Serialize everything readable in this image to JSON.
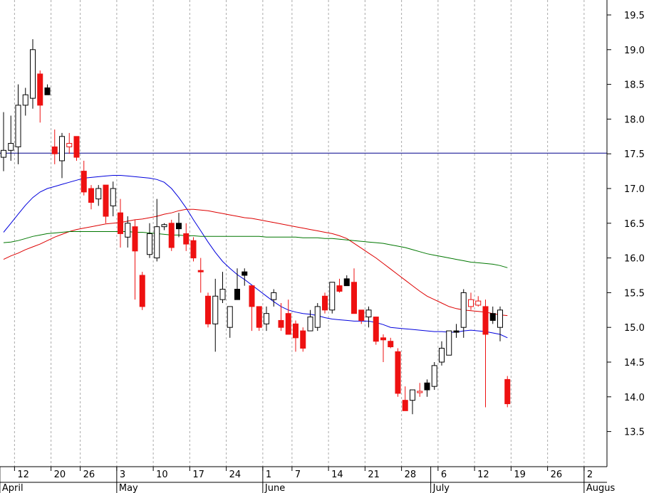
{
  "chart_data": {
    "type": "candlestick",
    "title": "",
    "ylim": [
      13.15,
      19.75
    ],
    "grid": true,
    "y_ticks": [
      "19.5",
      "19.0",
      "18.5",
      "18.0",
      "17.5",
      "17.0",
      "16.5",
      "16.0",
      "15.5",
      "15.0",
      "14.5",
      "14.0",
      "13.5"
    ],
    "x_ticks": [
      {
        "label": "12",
        "bar": 1.5
      },
      {
        "label": "20",
        "bar": 6.5
      },
      {
        "label": "26",
        "bar": 10.5
      },
      {
        "label": "3",
        "bar": 15.5
      },
      {
        "label": "10",
        "bar": 20.5
      },
      {
        "label": "17",
        "bar": 25.5
      },
      {
        "label": "24",
        "bar": 30.5
      },
      {
        "label": "1",
        "bar": 35.5
      },
      {
        "label": "7",
        "bar": 39.5
      },
      {
        "label": "14",
        "bar": 44.5
      },
      {
        "label": "21",
        "bar": 49.5
      },
      {
        "label": "28",
        "bar": 54.5
      },
      {
        "label": "6",
        "bar": 59.5
      },
      {
        "label": "12",
        "bar": 64.5
      },
      {
        "label": "19",
        "bar": 69.5
      },
      {
        "label": "26",
        "bar": 74.5
      },
      {
        "label": "2",
        "bar": 79.5
      }
    ],
    "months": [
      {
        "label": "April",
        "bar": -0.5
      },
      {
        "label": "May",
        "bar": 15.5
      },
      {
        "label": "June",
        "bar": 35.5
      },
      {
        "label": "July",
        "bar": 58.5
      },
      {
        "label": "Augus",
        "bar": 79.5
      }
    ],
    "reference_line": {
      "value": 17.51,
      "color": "#00008b"
    },
    "colors": {
      "up": "#ffffff",
      "down_filled": "#ee1111",
      "black": "#000000",
      "ma_blue": "#0000dd",
      "ma_red": "#dd0000",
      "ma_green": "#007700",
      "grid": "#aaaaaa",
      "axis": "#000000"
    },
    "candles": [
      {
        "o": 17.45,
        "h": 18.1,
        "l": 17.25,
        "c": 17.55,
        "s": "up"
      },
      {
        "o": 17.55,
        "h": 18.05,
        "l": 17.4,
        "c": 17.65,
        "s": "up"
      },
      {
        "o": 17.6,
        "h": 18.5,
        "l": 17.35,
        "c": 18.2,
        "s": "up"
      },
      {
        "o": 18.2,
        "h": 18.45,
        "l": 18.05,
        "c": 18.35,
        "s": "up"
      },
      {
        "o": 18.3,
        "h": 19.15,
        "l": 18.15,
        "c": 19.0,
        "s": "up"
      },
      {
        "o": 18.65,
        "h": 18.7,
        "l": 17.95,
        "c": 18.2,
        "s": "down"
      },
      {
        "o": 18.45,
        "h": 18.5,
        "l": 18.35,
        "c": 18.35,
        "s": "black"
      },
      {
        "o": 17.6,
        "h": 17.85,
        "l": 17.35,
        "c": 17.5,
        "s": "down"
      },
      {
        "o": 17.4,
        "h": 17.8,
        "l": 17.15,
        "c": 17.75,
        "s": "up"
      },
      {
        "o": 17.65,
        "h": 17.8,
        "l": 17.5,
        "c": 17.6,
        "s": "hollowred"
      },
      {
        "o": 17.75,
        "h": 17.75,
        "l": 17.4,
        "c": 17.45,
        "s": "down"
      },
      {
        "o": 17.25,
        "h": 17.4,
        "l": 16.9,
        "c": 16.95,
        "s": "down"
      },
      {
        "o": 17.0,
        "h": 17.05,
        "l": 16.7,
        "c": 16.8,
        "s": "down"
      },
      {
        "o": 16.85,
        "h": 17.05,
        "l": 16.75,
        "c": 17.0,
        "s": "up"
      },
      {
        "o": 17.05,
        "h": 17.05,
        "l": 16.5,
        "c": 16.6,
        "s": "down"
      },
      {
        "o": 16.75,
        "h": 17.1,
        "l": 16.6,
        "c": 17.0,
        "s": "up"
      },
      {
        "o": 16.65,
        "h": 16.85,
        "l": 16.15,
        "c": 16.35,
        "s": "down"
      },
      {
        "o": 16.3,
        "h": 16.6,
        "l": 16.15,
        "c": 16.5,
        "s": "up"
      },
      {
        "o": 16.45,
        "h": 16.55,
        "l": 15.4,
        "c": 16.1,
        "s": "down"
      },
      {
        "o": 15.75,
        "h": 15.8,
        "l": 15.25,
        "c": 15.3,
        "s": "down"
      },
      {
        "o": 16.05,
        "h": 16.5,
        "l": 16.0,
        "c": 16.35,
        "s": "up"
      },
      {
        "o": 16.0,
        "h": 16.85,
        "l": 15.95,
        "c": 16.45,
        "s": "up"
      },
      {
        "o": 16.45,
        "h": 16.5,
        "l": 16.4,
        "c": 16.48,
        "s": "up"
      },
      {
        "o": 16.5,
        "h": 16.55,
        "l": 16.1,
        "c": 16.15,
        "s": "down"
      },
      {
        "o": 16.5,
        "h": 16.65,
        "l": 16.3,
        "c": 16.42,
        "s": "black"
      },
      {
        "o": 16.35,
        "h": 16.5,
        "l": 16.1,
        "c": 16.2,
        "s": "down"
      },
      {
        "o": 16.25,
        "h": 16.3,
        "l": 15.95,
        "c": 16.0,
        "s": "down"
      },
      {
        "o": 15.82,
        "h": 16.0,
        "l": 15.5,
        "c": 15.8,
        "s": "down"
      },
      {
        "o": 15.45,
        "h": 15.5,
        "l": 15.0,
        "c": 15.05,
        "s": "down"
      },
      {
        "o": 15.05,
        "h": 15.7,
        "l": 14.65,
        "c": 15.45,
        "s": "up"
      },
      {
        "o": 15.4,
        "h": 15.8,
        "l": 15.35,
        "c": 15.55,
        "s": "up"
      },
      {
        "o": 15.3,
        "h": 15.3,
        "l": 14.85,
        "c": 15.0,
        "s": "up"
      },
      {
        "o": 15.4,
        "h": 15.85,
        "l": 15.4,
        "c": 15.55,
        "s": "black"
      },
      {
        "o": 15.75,
        "h": 15.85,
        "l": 15.6,
        "c": 15.8,
        "s": "black"
      },
      {
        "o": 15.6,
        "h": 15.6,
        "l": 14.95,
        "c": 15.3,
        "s": "down"
      },
      {
        "o": 15.3,
        "h": 15.3,
        "l": 14.95,
        "c": 15.0,
        "s": "down"
      },
      {
        "o": 15.05,
        "h": 15.3,
        "l": 14.95,
        "c": 15.2,
        "s": "up"
      },
      {
        "o": 15.4,
        "h": 15.55,
        "l": 15.3,
        "c": 15.5,
        "s": "up"
      },
      {
        "o": 15.1,
        "h": 15.35,
        "l": 14.95,
        "c": 15.0,
        "s": "down"
      },
      {
        "o": 15.2,
        "h": 15.4,
        "l": 14.9,
        "c": 14.9,
        "s": "down"
      },
      {
        "o": 15.05,
        "h": 15.1,
        "l": 14.65,
        "c": 14.85,
        "s": "down"
      },
      {
        "o": 14.95,
        "h": 15.0,
        "l": 14.65,
        "c": 14.7,
        "s": "down"
      },
      {
        "o": 14.95,
        "h": 15.25,
        "l": 14.95,
        "c": 15.15,
        "s": "up"
      },
      {
        "o": 15.0,
        "h": 15.35,
        "l": 14.95,
        "c": 15.3,
        "s": "up"
      },
      {
        "o": 15.45,
        "h": 15.5,
        "l": 15.2,
        "c": 15.25,
        "s": "down"
      },
      {
        "o": 15.25,
        "h": 15.65,
        "l": 15.2,
        "c": 15.65,
        "s": "up"
      },
      {
        "o": 15.6,
        "h": 15.7,
        "l": 15.5,
        "c": 15.52,
        "s": "down"
      },
      {
        "o": 15.7,
        "h": 15.75,
        "l": 15.6,
        "c": 15.6,
        "s": "black"
      },
      {
        "o": 15.65,
        "h": 15.85,
        "l": 15.2,
        "c": 15.2,
        "s": "down"
      },
      {
        "o": 15.25,
        "h": 15.25,
        "l": 15.05,
        "c": 15.1,
        "s": "down"
      },
      {
        "o": 15.15,
        "h": 15.3,
        "l": 15.0,
        "c": 15.25,
        "s": "up"
      },
      {
        "o": 15.15,
        "h": 15.15,
        "l": 14.75,
        "c": 14.8,
        "s": "down"
      },
      {
        "o": 14.85,
        "h": 14.9,
        "l": 14.5,
        "c": 14.82,
        "s": "down"
      },
      {
        "o": 14.8,
        "h": 14.85,
        "l": 14.7,
        "c": 14.72,
        "s": "down"
      },
      {
        "o": 14.65,
        "h": 14.7,
        "l": 14.0,
        "c": 14.05,
        "s": "down"
      },
      {
        "o": 13.95,
        "h": 14.15,
        "l": 13.8,
        "c": 13.8,
        "s": "down"
      },
      {
        "o": 13.95,
        "h": 14.1,
        "l": 13.75,
        "c": 14.1,
        "s": "up"
      },
      {
        "o": 14.08,
        "h": 14.2,
        "l": 14.0,
        "c": 14.06,
        "s": "hollowred"
      },
      {
        "o": 14.2,
        "h": 14.25,
        "l": 14.0,
        "c": 14.1,
        "s": "black"
      },
      {
        "o": 14.15,
        "h": 14.5,
        "l": 14.1,
        "c": 14.45,
        "s": "up"
      },
      {
        "o": 14.5,
        "h": 14.8,
        "l": 14.45,
        "c": 14.7,
        "s": "up"
      },
      {
        "o": 14.6,
        "h": 14.95,
        "l": 14.6,
        "c": 14.95,
        "s": "up"
      },
      {
        "o": 14.95,
        "h": 15.05,
        "l": 14.85,
        "c": 14.95,
        "s": "black"
      },
      {
        "o": 15.0,
        "h": 15.55,
        "l": 14.85,
        "c": 15.5,
        "s": "up"
      },
      {
        "o": 15.4,
        "h": 15.5,
        "l": 15.25,
        "c": 15.3,
        "s": "hollowred"
      },
      {
        "o": 15.38,
        "h": 15.45,
        "l": 15.3,
        "c": 15.32,
        "s": "hollowred"
      },
      {
        "o": 15.3,
        "h": 15.4,
        "l": 13.85,
        "c": 14.9,
        "s": "down"
      },
      {
        "o": 15.2,
        "h": 15.3,
        "l": 15.05,
        "c": 15.1,
        "s": "black"
      },
      {
        "o": 15.0,
        "h": 15.3,
        "l": 14.8,
        "c": 15.25,
        "s": "up"
      },
      {
        "o": 14.25,
        "h": 14.3,
        "l": 13.85,
        "c": 13.9,
        "s": "down"
      }
    ],
    "series": [
      {
        "color": "#0000dd",
        "values": [
          16.37,
          16.5,
          16.63,
          16.76,
          16.87,
          16.95,
          17.0,
          17.03,
          17.06,
          17.09,
          17.12,
          17.15,
          17.16,
          17.17,
          17.18,
          17.19,
          17.19,
          17.18,
          17.17,
          17.16,
          17.15,
          17.13,
          17.09,
          17.0,
          16.87,
          16.72,
          16.55,
          16.39,
          16.23,
          16.08,
          15.95,
          15.85,
          15.76,
          15.69,
          15.61,
          15.53,
          15.45,
          15.37,
          15.3,
          15.25,
          15.22,
          15.2,
          15.19,
          15.17,
          15.14,
          15.12,
          15.11,
          15.1,
          15.09,
          15.09,
          15.09,
          15.07,
          15.04,
          15.0,
          14.99,
          14.98,
          14.97,
          14.96,
          14.95,
          14.94,
          14.94,
          14.93,
          14.93,
          14.95,
          14.96,
          14.95,
          14.94,
          14.92,
          14.9,
          14.85
        ]
      },
      {
        "color": "#dd0000",
        "values": [
          15.98,
          16.03,
          16.07,
          16.12,
          16.16,
          16.2,
          16.25,
          16.3,
          16.34,
          16.38,
          16.41,
          16.43,
          16.45,
          16.47,
          16.49,
          16.5,
          16.51,
          16.53,
          16.55,
          16.56,
          16.58,
          16.6,
          16.63,
          16.65,
          16.68,
          16.7,
          16.7,
          16.69,
          16.68,
          16.66,
          16.64,
          16.62,
          16.6,
          16.58,
          16.57,
          16.55,
          16.53,
          16.51,
          16.49,
          16.47,
          16.45,
          16.43,
          16.41,
          16.39,
          16.37,
          16.35,
          16.32,
          16.28,
          16.21,
          16.14,
          16.07,
          16.0,
          15.92,
          15.84,
          15.76,
          15.68,
          15.6,
          15.52,
          15.45,
          15.4,
          15.35,
          15.3,
          15.27,
          15.25,
          15.24,
          15.23,
          15.22,
          15.2,
          15.18,
          15.17
        ]
      },
      {
        "color": "#007700",
        "values": [
          16.22,
          16.23,
          16.25,
          16.28,
          16.31,
          16.33,
          16.35,
          16.36,
          16.37,
          16.38,
          16.38,
          16.38,
          16.38,
          16.38,
          16.38,
          16.38,
          16.38,
          16.38,
          16.37,
          16.37,
          16.36,
          16.35,
          16.34,
          16.33,
          16.33,
          16.32,
          16.32,
          16.31,
          16.31,
          16.31,
          16.31,
          16.31,
          16.31,
          16.31,
          16.31,
          16.31,
          16.3,
          16.3,
          16.3,
          16.3,
          16.3,
          16.29,
          16.29,
          16.29,
          16.28,
          16.28,
          16.27,
          16.26,
          16.25,
          16.24,
          16.23,
          16.22,
          16.21,
          16.19,
          16.17,
          16.15,
          16.12,
          16.09,
          16.06,
          16.04,
          16.02,
          16.0,
          15.98,
          15.96,
          15.94,
          15.93,
          15.92,
          15.91,
          15.89,
          15.86
        ]
      }
    ]
  }
}
